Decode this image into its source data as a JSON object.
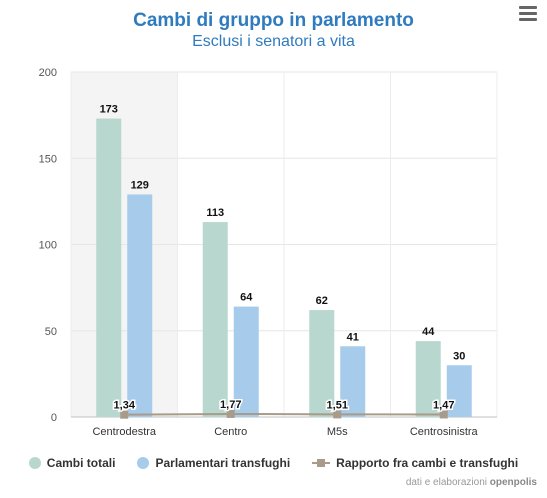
{
  "header": {
    "title": "Cambi di gruppo in parlamento",
    "subtitle": "Esclusi i senatori a vita"
  },
  "colors": {
    "cambi": "#b8d8cf",
    "transfughi": "#a6cbeb",
    "rapporto": "#a89b8a",
    "highlight": "#f4f4f4"
  },
  "chart_data": {
    "type": "bar",
    "categories": [
      "Centrodestra",
      "Centro",
      "M5s",
      "Centrosinistra"
    ],
    "series": [
      {
        "name": "Cambi totali",
        "type": "bar",
        "values": [
          173,
          113,
          62,
          44
        ]
      },
      {
        "name": "Parlamentari transfughi",
        "type": "bar",
        "values": [
          129,
          64,
          41,
          30
        ]
      },
      {
        "name": "Rapporto fra cambi e transfughi",
        "type": "line",
        "values": [
          1.34,
          1.77,
          1.51,
          1.47
        ],
        "labels": [
          "1,34",
          "1,77",
          "1,51",
          "1,47"
        ]
      }
    ],
    "yticks": [
      0,
      50,
      100,
      150,
      200
    ],
    "ylim": [
      0,
      200
    ],
    "highlight_category": "Centrodestra",
    "legend": "bottom"
  },
  "credits": {
    "prefix": "dati e elaborazioni",
    "brand": "openpolis"
  }
}
